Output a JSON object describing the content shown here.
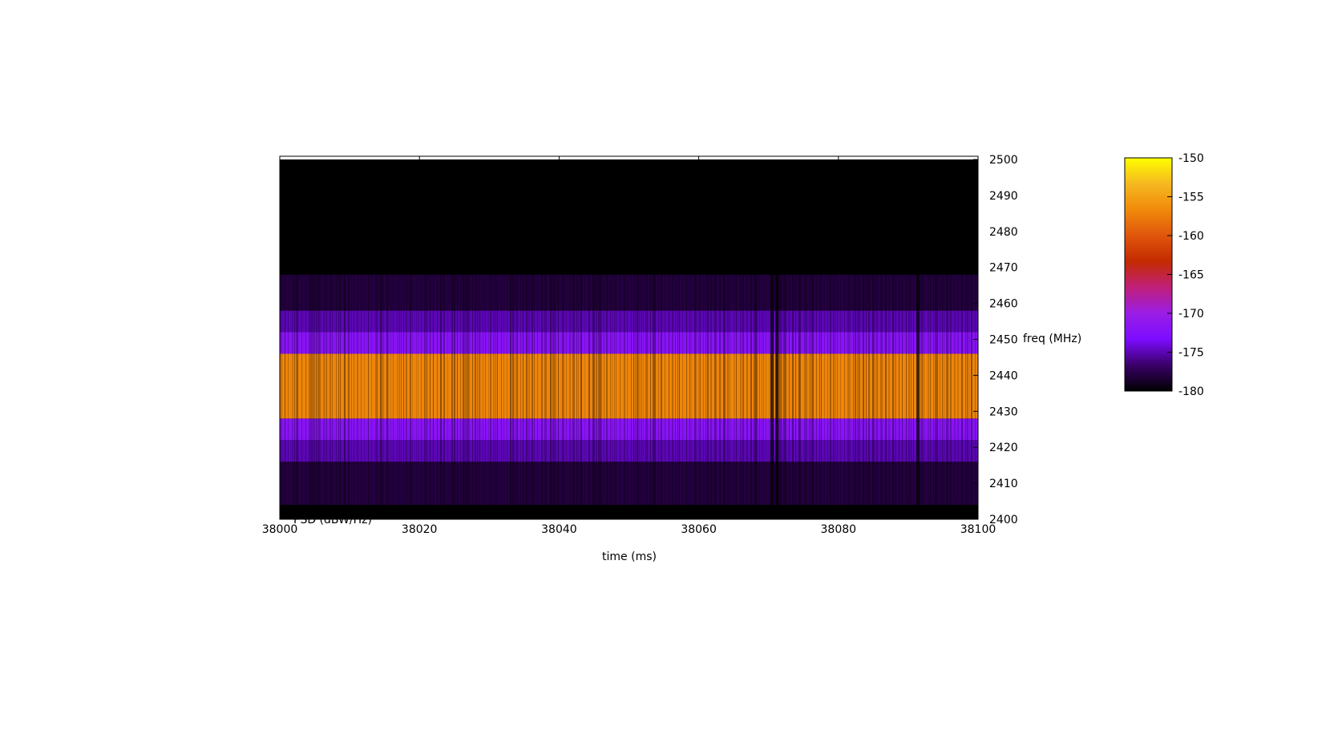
{
  "chart_data": {
    "type": "heatmap",
    "title": "",
    "xlabel": "time (ms)",
    "ylabel": "freq (MHz)",
    "legend_label": "PSD (dBW/Hz)",
    "xlim": [
      38000,
      38100
    ],
    "ylim": [
      2400,
      2500
    ],
    "xticks": [
      "38000",
      "38020",
      "38040",
      "38060",
      "38080",
      "38100"
    ],
    "yticks": [
      "2400",
      "2410",
      "2420",
      "2430",
      "2440",
      "2450",
      "2460",
      "2470",
      "2480",
      "2490",
      "2500"
    ],
    "colorbar": {
      "range": [
        -180,
        -150
      ],
      "ticks": [
        "-150",
        "-155",
        "-160",
        "-165",
        "-170",
        "-175",
        "-180"
      ],
      "palette": [
        "#000000",
        "#3a0068",
        "#7c0cff",
        "#9a1ee6",
        "#c01f7a",
        "#c42a00",
        "#e0560c",
        "#f08a0a",
        "#f5b820",
        "#ffff00"
      ]
    },
    "bands": [
      {
        "freq_min": 2400,
        "freq_max": 2404,
        "psd": -180
      },
      {
        "freq_min": 2404,
        "freq_max": 2416,
        "psd": -178
      },
      {
        "freq_min": 2416,
        "freq_max": 2422,
        "psd": -175
      },
      {
        "freq_min": 2422,
        "freq_max": 2428,
        "psd": -172
      },
      {
        "freq_min": 2428,
        "freq_max": 2446,
        "psd": -157
      },
      {
        "freq_min": 2446,
        "freq_max": 2452,
        "psd": -172
      },
      {
        "freq_min": 2452,
        "freq_max": 2458,
        "psd": -175
      },
      {
        "freq_min": 2458,
        "freq_max": 2468,
        "psd": -178
      },
      {
        "freq_min": 2468,
        "freq_max": 2500,
        "psd": -180
      }
    ],
    "gaps_ms": [
      38070.5,
      38071.2,
      38091.4
    ]
  }
}
